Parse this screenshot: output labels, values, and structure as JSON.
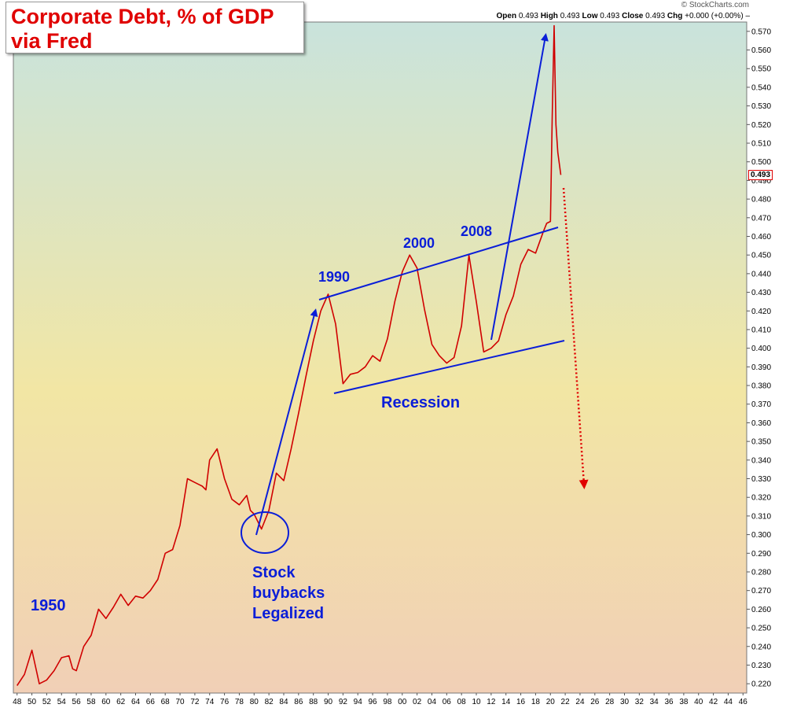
{
  "header": {
    "title_line1": "Corporate Debt, % of GDP",
    "title_line2": "via Fred",
    "watermark": "© StockCharts.com",
    "ohlc": {
      "open_label": "Open",
      "open": "0.493",
      "high_label": "High",
      "high": "0.493",
      "low_label": "Low",
      "low": "0.493",
      "close_label": "Close",
      "close": "0.493",
      "chg_label": "Chg",
      "chg": "+0.000 (+0.00%)"
    },
    "last_price": "0.493"
  },
  "colors": {
    "series": "#d00000",
    "annotation": "#0a1ed8",
    "title": "#e00000"
  },
  "chart_data": {
    "type": "line",
    "title": "Corporate Debt, % of GDP",
    "xlabel": "",
    "ylabel": "",
    "xlim": [
      1947.5,
      2046.5
    ],
    "ylim": [
      0.215,
      0.575
    ],
    "grid": false,
    "legend": "none",
    "x_tick_labels": [
      "48",
      "50",
      "52",
      "54",
      "56",
      "58",
      "60",
      "62",
      "64",
      "66",
      "68",
      "70",
      "72",
      "74",
      "76",
      "78",
      "80",
      "82",
      "84",
      "86",
      "88",
      "90",
      "92",
      "94",
      "96",
      "98",
      "00",
      "02",
      "04",
      "06",
      "08",
      "10",
      "12",
      "14",
      "16",
      "18",
      "20",
      "22",
      "24",
      "26",
      "28",
      "30",
      "32",
      "34",
      "36",
      "38",
      "40",
      "42",
      "44",
      "46"
    ],
    "y_tick_labels": [
      "0.220",
      "0.230",
      "0.240",
      "0.250",
      "0.260",
      "0.270",
      "0.280",
      "0.290",
      "0.300",
      "0.310",
      "0.320",
      "0.330",
      "0.340",
      "0.350",
      "0.360",
      "0.370",
      "0.380",
      "0.390",
      "0.400",
      "0.410",
      "0.420",
      "0.430",
      "0.440",
      "0.450",
      "0.460",
      "0.470",
      "0.480",
      "0.490",
      "0.500",
      "0.510",
      "0.520",
      "0.530",
      "0.540",
      "0.550",
      "0.560",
      "0.570"
    ],
    "series": [
      {
        "x": [
          1948,
          1949,
          1950,
          1951,
          1951.5,
          1952,
          1953,
          1954,
          1955,
          1955.5,
          1956,
          1957,
          1958,
          1959,
          1960,
          1961,
          1962,
          1963,
          1964,
          1965,
          1966,
          1967,
          1968,
          1969,
          1970,
          1971,
          1972,
          1973,
          1973.5,
          1974,
          1975,
          1976,
          1977,
          1978,
          1979,
          1979.5,
          1980,
          1981,
          1982,
          1983,
          1984,
          1985,
          1986,
          1987,
          1988,
          1989,
          1990,
          1991,
          1992,
          1993,
          1994,
          1995,
          1996,
          1997,
          1998,
          1999,
          2000,
          2001,
          2002,
          2003,
          2004,
          2005,
          2006,
          2007,
          2008,
          2009,
          2010,
          2011,
          2012,
          2013,
          2014,
          2015,
          2016,
          2017,
          2018,
          2019,
          2019.5,
          2020,
          2020.25,
          2020.5,
          2020.75,
          2021,
          2021.4
        ],
        "y": [
          0.219,
          0.225,
          0.238,
          0.22,
          0.221,
          0.222,
          0.227,
          0.234,
          0.235,
          0.228,
          0.227,
          0.24,
          0.246,
          0.26,
          0.255,
          0.261,
          0.268,
          0.262,
          0.267,
          0.266,
          0.27,
          0.276,
          0.29,
          0.292,
          0.305,
          0.33,
          0.328,
          0.326,
          0.324,
          0.34,
          0.346,
          0.33,
          0.319,
          0.316,
          0.321,
          0.313,
          0.311,
          0.303,
          0.313,
          0.333,
          0.329,
          0.346,
          0.365,
          0.385,
          0.404,
          0.42,
          0.429,
          0.413,
          0.381,
          0.386,
          0.387,
          0.39,
          0.396,
          0.393,
          0.405,
          0.425,
          0.441,
          0.45,
          0.443,
          0.421,
          0.402,
          0.396,
          0.392,
          0.395,
          0.412,
          0.45,
          0.425,
          0.398,
          0.4,
          0.404,
          0.418,
          0.428,
          0.445,
          0.453,
          0.451,
          0.462,
          0.467,
          0.468,
          0.525,
          0.573,
          0.52,
          0.505,
          0.493
        ]
      }
    ],
    "annotations": {
      "label_1950": "1950",
      "label_1990": "1990",
      "label_2000": "2000",
      "label_2008": "2008",
      "label_recession": "Recession",
      "label_buybacks_1": "Stock",
      "label_buybacks_2": "buybacks",
      "label_buybacks_3": "Legalized"
    }
  }
}
